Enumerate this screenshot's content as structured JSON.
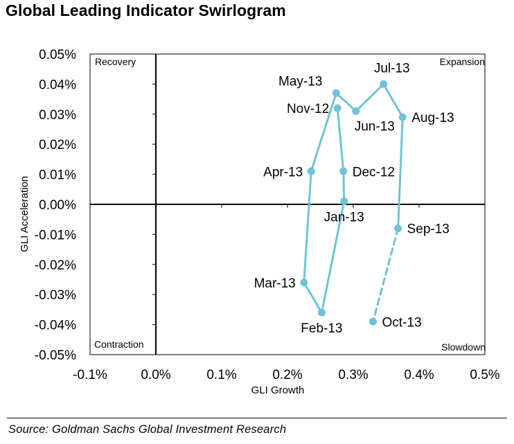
{
  "title": "Global Leading Indicator Swirlogram",
  "source": "Source: Goldman Sachs Global Investment Research",
  "colors": {
    "series": "#6FC3D6",
    "axis": "#000000",
    "frame": "#000000"
  },
  "chart_data": {
    "type": "scatter",
    "connected": true,
    "xlabel": "GLI Growth",
    "ylabel": "GLI Acceleration",
    "xlim": [
      -0.1,
      0.5
    ],
    "ylim": [
      -0.05,
      0.05
    ],
    "x_ticks": [
      -0.1,
      0.0,
      0.1,
      0.2,
      0.3,
      0.4,
      0.5
    ],
    "x_tick_labels": [
      "-0.1%",
      "0.0%",
      "0.1%",
      "0.2%",
      "0.3%",
      "0.4%",
      "0.5%"
    ],
    "y_ticks": [
      0.05,
      0.04,
      0.03,
      0.02,
      0.01,
      0.0,
      -0.01,
      -0.02,
      -0.03,
      -0.04,
      -0.05
    ],
    "y_tick_labels": [
      "0.05%",
      "0.04%",
      "0.03%",
      "0.02%",
      "0.01%",
      "0.00%",
      "-0.01%",
      "-0.02%",
      "-0.03%",
      "-0.04%",
      "-0.05%"
    ],
    "quadrants": {
      "top_left": "Recovery",
      "top_right": "Expansion",
      "bottom_left": "Contraction",
      "bottom_right": "Slowdown"
    },
    "points": [
      {
        "label": "Nov-12",
        "x": 0.276,
        "y": 0.032,
        "label_pos": "left"
      },
      {
        "label": "Dec-12",
        "x": 0.285,
        "y": 0.011,
        "label_pos": "right"
      },
      {
        "label": "Jan-13",
        "x": 0.286,
        "y": 0.001,
        "label_pos": "below"
      },
      {
        "label": "Feb-13",
        "x": 0.252,
        "y": -0.036,
        "label_pos": "below"
      },
      {
        "label": "Mar-13",
        "x": 0.225,
        "y": -0.026,
        "label_pos": "left"
      },
      {
        "label": "Apr-13",
        "x": 0.236,
        "y": 0.011,
        "label_pos": "left"
      },
      {
        "label": "May-13",
        "x": 0.274,
        "y": 0.037,
        "label_pos": "above-left"
      },
      {
        "label": "Jun-13",
        "x": 0.304,
        "y": 0.031,
        "label_pos": "below-right"
      },
      {
        "label": "Jul-13",
        "x": 0.346,
        "y": 0.04,
        "label_pos": "above"
      },
      {
        "label": "Aug-13",
        "x": 0.375,
        "y": 0.029,
        "label_pos": "right"
      },
      {
        "label": "Sep-13",
        "x": 0.368,
        "y": -0.008,
        "label_pos": "right"
      },
      {
        "label": "Oct-13",
        "x": 0.33,
        "y": -0.039,
        "label_pos": "right",
        "dashed_from_previous": true
      }
    ]
  }
}
